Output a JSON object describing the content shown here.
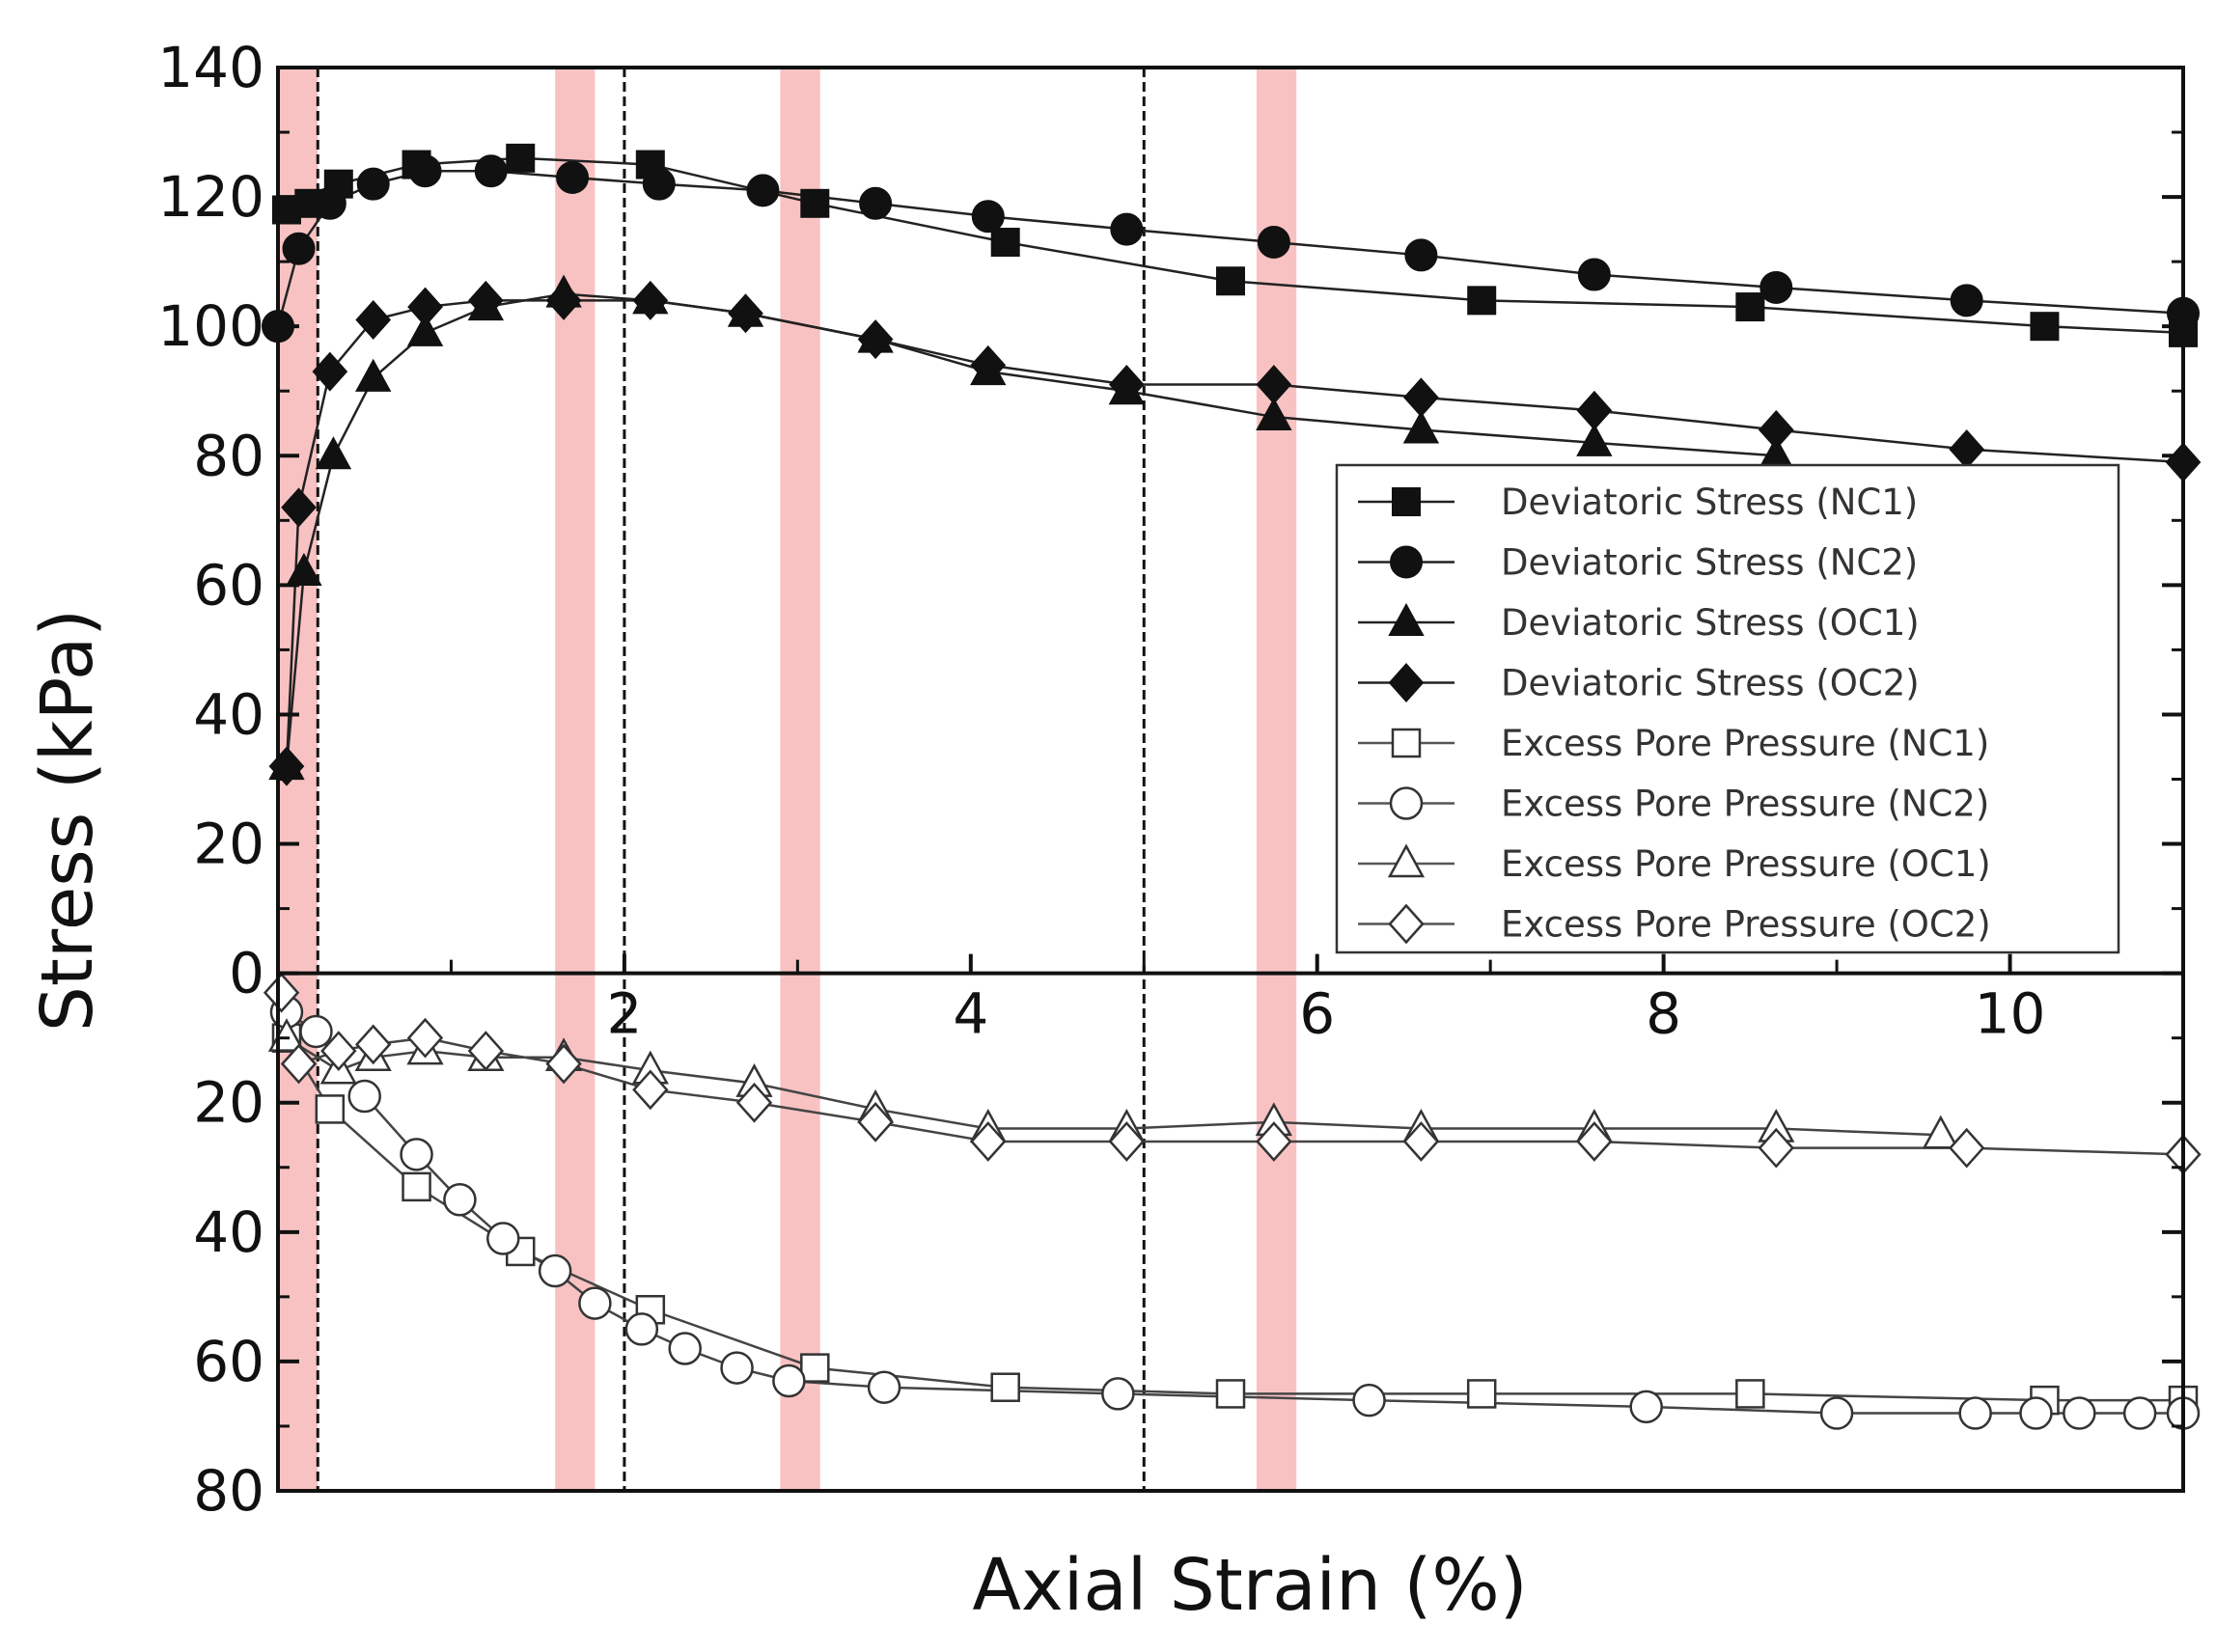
{
  "chart_data": {
    "type": "line",
    "title": "",
    "xlabel": "Axial Strain (%)",
    "ylabel": "Stress (kPa)",
    "xlim": [
      0,
      11
    ],
    "ylim": [
      -80,
      140
    ],
    "grid": false,
    "legend_position": "right",
    "x_ticks": [
      2,
      4,
      6,
      8,
      10
    ],
    "x_minor_ticks": [
      1,
      3,
      5,
      7,
      9
    ],
    "y_ticks_upper": [
      140,
      120,
      100,
      80,
      60,
      40,
      20,
      0
    ],
    "y_ticks_lower": [
      20,
      40,
      60,
      80
    ],
    "highlight_bands": [
      [
        0,
        0.23
      ],
      [
        1.6,
        1.83
      ],
      [
        2.9,
        3.13
      ],
      [
        5.65,
        5.88
      ]
    ],
    "dashed_lines_x": [
      0.23,
      2.0,
      5.0
    ],
    "series": [
      {
        "name": "Deviatoric Stress (NC1)",
        "marker": "square",
        "filled": true,
        "x": [
          0.05,
          0.18,
          0.35,
          0.8,
          1.4,
          2.15,
          3.1,
          4.2,
          5.5,
          6.95,
          8.5,
          10.2,
          11.0
        ],
        "y": [
          118,
          119,
          122,
          125,
          126,
          125,
          119,
          113,
          107,
          104,
          103,
          100,
          99
        ]
      },
      {
        "name": "Deviatoric Stress (NC2)",
        "marker": "circle",
        "filled": true,
        "x": [
          0.0,
          0.12,
          0.3,
          0.55,
          0.85,
          1.23,
          1.7,
          2.2,
          2.8,
          3.45,
          4.1,
          4.9,
          5.75,
          6.6,
          7.6,
          8.65,
          9.75,
          11.0
        ],
        "y": [
          100,
          112,
          119,
          122,
          124,
          124,
          123,
          122,
          121,
          119,
          117,
          115,
          113,
          111,
          108,
          106,
          104,
          102
        ]
      },
      {
        "name": "Deviatoric Stress (OC1)",
        "marker": "triangle",
        "filled": true,
        "x": [
          0.05,
          0.15,
          0.32,
          0.55,
          0.85,
          1.2,
          1.65,
          2.15,
          2.7,
          3.45,
          4.1,
          4.9,
          5.75,
          6.6,
          7.6,
          8.65
        ],
        "y": [
          32,
          62,
          80,
          92,
          99,
          103,
          105,
          104,
          102,
          98,
          93,
          90,
          86,
          84,
          82,
          80
        ]
      },
      {
        "name": "Deviatoric Stress (OC2)",
        "marker": "diamond",
        "filled": true,
        "x": [
          0.05,
          0.12,
          0.3,
          0.55,
          0.85,
          1.2,
          1.65,
          2.15,
          2.7,
          3.45,
          4.1,
          4.9,
          5.75,
          6.6,
          7.6,
          8.65,
          9.75,
          11.0
        ],
        "y": [
          32,
          72,
          93,
          101,
          103,
          104,
          104,
          104,
          102,
          98,
          94,
          91,
          91,
          89,
          87,
          84,
          81,
          79
        ]
      },
      {
        "name": "Excess Pore Pressure (NC1)",
        "marker": "square",
        "filled": false,
        "x": [
          0.05,
          0.3,
          0.8,
          1.4,
          2.15,
          3.1,
          4.2,
          5.5,
          6.95,
          8.5,
          10.2,
          11.0
        ],
        "y": [
          -10,
          -21,
          -33,
          -43,
          -52,
          -61,
          -64,
          -65,
          -65,
          -65,
          -66,
          -66
        ]
      },
      {
        "name": "Excess Pore Pressure (NC2)",
        "marker": "circle",
        "filled": false,
        "x": [
          0.05,
          0.22,
          0.5,
          0.8,
          1.05,
          1.3,
          1.6,
          1.83,
          2.1,
          2.35,
          2.65,
          2.95,
          3.5,
          4.85,
          6.3,
          7.9,
          9.0,
          9.8,
          10.15,
          10.4,
          10.75,
          11.0
        ],
        "y": [
          -6,
          -9,
          -19,
          -28,
          -35,
          -41,
          -46,
          -51,
          -55,
          -58,
          -61,
          -63,
          -64,
          -65,
          -66,
          -67,
          -68,
          -68,
          -68,
          -68,
          -68,
          -68
        ]
      },
      {
        "name": "Excess Pore Pressure (OC1)",
        "marker": "triangle",
        "filled": false,
        "x": [
          0.05,
          0.35,
          0.55,
          0.85,
          1.2,
          1.65,
          2.15,
          2.75,
          3.45,
          4.1,
          4.9,
          5.75,
          6.6,
          7.6,
          8.65,
          9.6
        ],
        "y": [
          -10,
          -15,
          -13,
          -12,
          -13,
          -13,
          -15,
          -17,
          -21,
          -24,
          -24,
          -23,
          -24,
          -24,
          -24,
          -25
        ]
      },
      {
        "name": "Excess Pore Pressure (OC2)",
        "marker": "diamond",
        "filled": false,
        "x": [
          0.02,
          0.12,
          0.35,
          0.55,
          0.85,
          1.2,
          1.65,
          2.15,
          2.75,
          3.45,
          4.1,
          4.9,
          5.75,
          6.6,
          7.6,
          8.65,
          9.75,
          11.0
        ],
        "y": [
          -3,
          -14,
          -12,
          -11,
          -10,
          -12,
          -14,
          -18,
          -20,
          -23,
          -26,
          -26,
          -26,
          -26,
          -26,
          -27,
          -27,
          -28
        ]
      }
    ]
  }
}
